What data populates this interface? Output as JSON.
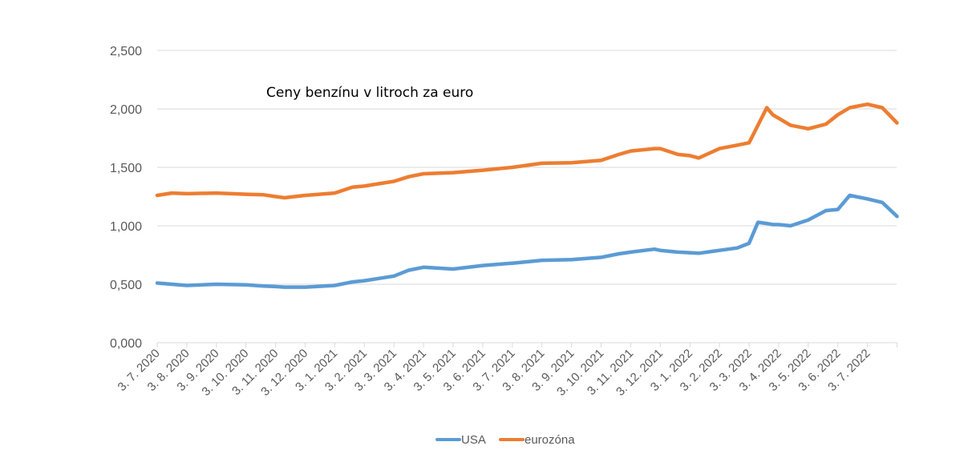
{
  "chart_data": {
    "type": "line",
    "title": "Ceny benzínu v litroch za euro",
    "xlabel": "",
    "ylabel": "",
    "ylim": [
      0,
      2.5
    ],
    "yticks": [
      "0,000",
      "0,500",
      "1,000",
      "1,500",
      "2,000",
      "2,500"
    ],
    "ytick_values": [
      0,
      0.5,
      1.0,
      1.5,
      2.0,
      2.5
    ],
    "grid": true,
    "legend_position": "bottom",
    "xtick_labels": [
      "3. 7. 2020",
      "3. 8. 2020",
      "3. 9. 2020",
      "3. 10. 2020",
      "3. 11. 2020",
      "3. 12. 2020",
      "3. 1. 2021",
      "3. 2. 2021",
      "3. 3. 2021",
      "3. 4. 2021",
      "3. 5. 2021",
      "3. 6. 2021",
      "3. 7. 2021",
      "3. 8. 2021",
      "3. 9. 2021",
      "3. 10. 2021",
      "3. 11. 2021",
      "3. 12. 2021",
      "3. 1. 2022",
      "3. 2. 2022",
      "3. 3. 2022",
      "3. 4. 2022",
      "3. 5. 2022",
      "3. 6. 2022",
      "3. 7. 2022"
    ],
    "x_months": [
      0,
      0.5,
      1,
      2,
      3,
      3.6,
      4,
      4.3,
      5,
      6,
      6.6,
      7,
      7.5,
      8,
      8.5,
      9,
      10,
      11,
      12,
      13,
      14,
      15,
      15.6,
      16,
      16.8,
      17,
      17.6,
      18,
      18.3,
      19,
      19.6,
      20,
      20.3,
      20.6,
      20.8,
      21,
      21.4,
      22,
      22.6,
      23,
      23.4,
      24,
      24.5,
      25
    ],
    "series": [
      {
        "name": "USA",
        "color": "#5B9BD5",
        "values": [
          0.51,
          0.5,
          0.49,
          0.5,
          0.495,
          0.485,
          0.48,
          0.475,
          0.475,
          0.49,
          0.52,
          0.53,
          0.55,
          0.57,
          0.62,
          0.645,
          0.63,
          0.66,
          0.68,
          0.705,
          0.71,
          0.73,
          0.76,
          0.775,
          0.8,
          0.79,
          0.775,
          0.77,
          0.765,
          0.79,
          0.81,
          0.85,
          1.03,
          1.02,
          1.01,
          1.01,
          1.0,
          1.05,
          1.13,
          1.14,
          1.26,
          1.23,
          1.2,
          1.08
        ]
      },
      {
        "name": "eurozóna",
        "color": "#ED7D31",
        "values": [
          1.26,
          1.28,
          1.275,
          1.28,
          1.27,
          1.265,
          1.25,
          1.24,
          1.26,
          1.28,
          1.33,
          1.34,
          1.36,
          1.38,
          1.42,
          1.445,
          1.455,
          1.475,
          1.5,
          1.535,
          1.54,
          1.56,
          1.61,
          1.64,
          1.66,
          1.66,
          1.61,
          1.6,
          1.58,
          1.66,
          1.69,
          1.71,
          1.86,
          2.01,
          1.95,
          1.92,
          1.86,
          1.83,
          1.87,
          1.95,
          2.01,
          2.04,
          2.01,
          1.88
        ]
      }
    ]
  },
  "legend": {
    "items": [
      {
        "label": "USA",
        "color": "#5B9BD5"
      },
      {
        "label": "eurozóna",
        "color": "#ED7D31"
      }
    ]
  },
  "colors": {
    "gridline": "#D9D9D9",
    "axis_text": "#595959"
  }
}
